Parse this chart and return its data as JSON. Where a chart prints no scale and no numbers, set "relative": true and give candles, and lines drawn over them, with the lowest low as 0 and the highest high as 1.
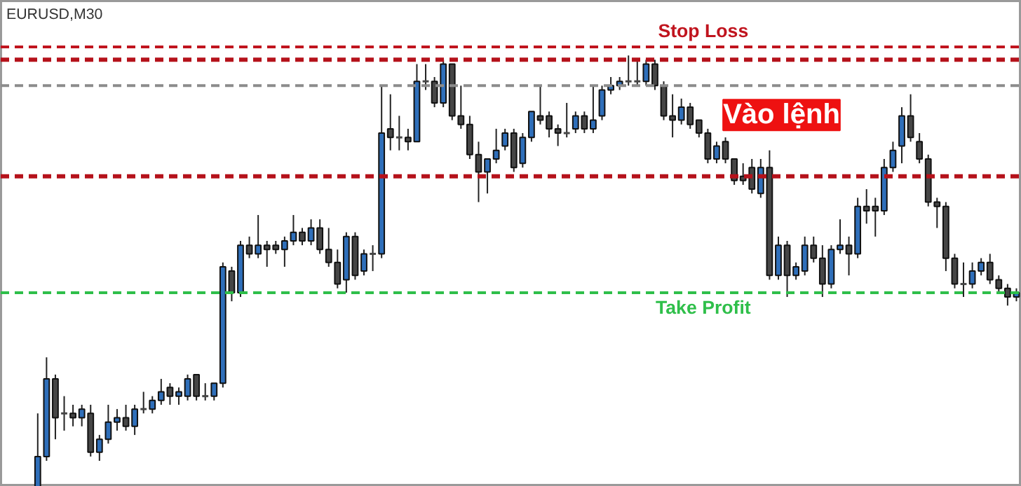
{
  "chart_data": {
    "type": "candlestick",
    "title": "EURUSD,M30",
    "relative": true,
    "categories": [
      null,
      null,
      null,
      null,
      null,
      null,
      null,
      null,
      null,
      null,
      null,
      null,
      null,
      null,
      null,
      null,
      null,
      null,
      null,
      null,
      null,
      null,
      null,
      null,
      null,
      null,
      null,
      null,
      null,
      null,
      null,
      null,
      null,
      null,
      null,
      null,
      null,
      null,
      null,
      null,
      null,
      null,
      null,
      null,
      null,
      null,
      null,
      null,
      null,
      null,
      null,
      null,
      null,
      null,
      null,
      null,
      null,
      null,
      null,
      null,
      null,
      null,
      null,
      null,
      null,
      null,
      null,
      null,
      null,
      null,
      null,
      null,
      null,
      null,
      null,
      null,
      null,
      null,
      null,
      null,
      null,
      null,
      null,
      null,
      null,
      null,
      null,
      null,
      null,
      null,
      null,
      null,
      null,
      null,
      null,
      null,
      null,
      null,
      null,
      null,
      null,
      null,
      null,
      null,
      null,
      null,
      null,
      null,
      null,
      null,
      null,
      null
    ],
    "ohlc": [
      [
        0,
        0.17,
        0,
        0.07
      ],
      [
        0.07,
        0.3,
        0.06,
        0.25
      ],
      [
        0.25,
        0.26,
        0.11,
        0.16
      ],
      [
        0.17,
        0.21,
        0.13,
        0.17
      ],
      [
        0.17,
        0.19,
        0.14,
        0.16
      ],
      [
        0.16,
        0.19,
        0.14,
        0.18
      ],
      [
        0.17,
        0.19,
        0.07,
        0.08
      ],
      [
        0.08,
        0.12,
        0.06,
        0.11
      ],
      [
        0.11,
        0.19,
        0.1,
        0.15
      ],
      [
        0.15,
        0.18,
        0.13,
        0.16
      ],
      [
        0.16,
        0.19,
        0.13,
        0.14
      ],
      [
        0.14,
        0.19,
        0.12,
        0.18
      ],
      [
        0.18,
        0.22,
        0.17,
        0.18
      ],
      [
        0.18,
        0.21,
        0.17,
        0.2
      ],
      [
        0.2,
        0.25,
        0.19,
        0.22
      ],
      [
        0.23,
        0.24,
        0.19,
        0.21
      ],
      [
        0.21,
        0.23,
        0.19,
        0.22
      ],
      [
        0.21,
        0.26,
        0.2,
        0.25
      ],
      [
        0.26,
        0.26,
        0.2,
        0.21
      ],
      [
        0.21,
        0.24,
        0.2,
        0.21
      ],
      [
        0.21,
        0.24,
        0.2,
        0.24
      ],
      [
        0.24,
        0.52,
        0.23,
        0.51
      ],
      [
        0.5,
        0.51,
        0.43,
        0.45
      ],
      [
        0.45,
        0.57,
        0.44,
        0.56
      ],
      [
        0.56,
        0.58,
        0.53,
        0.54
      ],
      [
        0.54,
        0.63,
        0.53,
        0.56
      ],
      [
        0.56,
        0.57,
        0.51,
        0.55
      ],
      [
        0.56,
        0.57,
        0.54,
        0.55
      ],
      [
        0.55,
        0.58,
        0.51,
        0.57
      ],
      [
        0.57,
        0.63,
        0.56,
        0.59
      ],
      [
        0.59,
        0.6,
        0.56,
        0.57
      ],
      [
        0.57,
        0.62,
        0.56,
        0.6
      ],
      [
        0.6,
        0.62,
        0.54,
        0.55
      ],
      [
        0.55,
        0.6,
        0.51,
        0.52
      ],
      [
        0.52,
        0.55,
        0.46,
        0.47
      ],
      [
        0.48,
        0.59,
        0.45,
        0.58
      ],
      [
        0.58,
        0.59,
        0.48,
        0.49
      ],
      [
        0.5,
        0.55,
        0.49,
        0.54
      ],
      [
        0.54,
        0.56,
        0.5,
        0.54
      ],
      [
        0.54,
        0.93,
        0.53,
        0.82
      ],
      [
        0.83,
        0.91,
        0.78,
        0.81
      ],
      [
        0.81,
        0.86,
        0.78,
        0.81
      ],
      [
        0.81,
        0.83,
        0.78,
        0.8
      ],
      [
        0.8,
        0.98,
        0.8,
        0.94
      ],
      [
        0.94,
        0.98,
        0.92,
        0.94
      ],
      [
        0.94,
        0.95,
        0.88,
        0.89
      ],
      [
        0.89,
        0.99,
        0.88,
        0.98
      ],
      [
        0.98,
        0.98,
        0.85,
        0.86
      ],
      [
        0.86,
        0.93,
        0.83,
        0.84
      ],
      [
        0.84,
        0.86,
        0.76,
        0.77
      ],
      [
        0.77,
        0.8,
        0.66,
        0.73
      ],
      [
        0.73,
        0.76,
        0.68,
        0.76
      ],
      [
        0.76,
        0.83,
        0.75,
        0.78
      ],
      [
        0.79,
        0.83,
        0.78,
        0.82
      ],
      [
        0.82,
        0.83,
        0.73,
        0.74
      ],
      [
        0.75,
        0.82,
        0.74,
        0.81
      ],
      [
        0.81,
        0.87,
        0.8,
        0.87
      ],
      [
        0.86,
        0.93,
        0.84,
        0.85
      ],
      [
        0.86,
        0.87,
        0.81,
        0.83
      ],
      [
        0.83,
        0.84,
        0.79,
        0.82
      ],
      [
        0.82,
        0.89,
        0.81,
        0.82
      ],
      [
        0.83,
        0.87,
        0.82,
        0.86
      ],
      [
        0.86,
        0.87,
        0.82,
        0.83
      ],
      [
        0.83,
        0.93,
        0.82,
        0.85
      ],
      [
        0.86,
        0.93,
        0.85,
        0.92
      ],
      [
        0.92,
        0.95,
        0.91,
        0.93
      ],
      [
        0.93,
        0.95,
        0.92,
        0.94
      ],
      [
        0.94,
        1,
        0.93,
        0.94
      ],
      [
        0.94,
        0.99,
        0.93,
        0.94
      ],
      [
        0.94,
        0.99,
        0.93,
        0.98
      ],
      [
        0.98,
        0.99,
        0.92,
        0.93
      ],
      [
        0.93,
        0.94,
        0.85,
        0.86
      ],
      [
        0.86,
        0.91,
        0.81,
        0.85
      ],
      [
        0.85,
        0.9,
        0.84,
        0.88
      ],
      [
        0.88,
        0.89,
        0.83,
        0.84
      ],
      [
        0.85,
        0.85,
        0.81,
        0.82
      ],
      [
        0.82,
        0.83,
        0.75,
        0.76
      ],
      [
        0.76,
        0.8,
        0.75,
        0.79
      ],
      [
        0.8,
        0.81,
        0.75,
        0.76
      ],
      [
        0.76,
        0.76,
        0.7,
        0.71
      ],
      [
        0.72,
        0.75,
        0.7,
        0.71
      ],
      [
        0.74,
        0.76,
        0.68,
        0.69
      ],
      [
        0.68,
        0.76,
        0.67,
        0.74
      ],
      [
        0.74,
        0.78,
        0.48,
        0.49
      ],
      [
        0.49,
        0.58,
        0.48,
        0.56
      ],
      [
        0.56,
        0.57,
        0.44,
        0.49
      ],
      [
        0.49,
        0.52,
        0.48,
        0.51
      ],
      [
        0.5,
        0.58,
        0.49,
        0.56
      ],
      [
        0.56,
        0.58,
        0.52,
        0.53
      ],
      [
        0.53,
        0.56,
        0.44,
        0.47
      ],
      [
        0.47,
        0.56,
        0.46,
        0.55
      ],
      [
        0.55,
        0.62,
        0.54,
        0.56
      ],
      [
        0.56,
        0.58,
        0.49,
        0.54
      ],
      [
        0.54,
        0.67,
        0.53,
        0.65
      ],
      [
        0.65,
        0.69,
        0.61,
        0.64
      ],
      [
        0.65,
        0.67,
        0.58,
        0.64
      ],
      [
        0.64,
        0.76,
        0.63,
        0.74
      ],
      [
        0.74,
        0.8,
        0.73,
        0.78
      ],
      [
        0.79,
        0.88,
        0.75,
        0.86
      ],
      [
        0.86,
        0.91,
        0.8,
        0.81
      ],
      [
        0.8,
        0.82,
        0.75,
        0.76
      ],
      [
        0.76,
        0.77,
        0.65,
        0.66
      ],
      [
        0.66,
        0.67,
        0.6,
        0.65
      ],
      [
        0.65,
        0.66,
        0.5,
        0.53
      ],
      [
        0.53,
        0.54,
        0.46,
        0.47
      ],
      [
        0.47,
        0.52,
        0.44,
        0.47
      ],
      [
        0.47,
        0.52,
        0.46,
        0.5
      ],
      [
        0.5,
        0.53,
        0.49,
        0.52
      ],
      [
        0.52,
        0.54,
        0.47,
        0.48
      ],
      [
        0.48,
        0.49,
        0.45,
        0.46
      ],
      [
        0.46,
        0.47,
        0.42,
        0.44
      ],
      [
        0.44,
        0.46,
        0.43,
        0.45
      ]
    ],
    "colors": [
      "#2f6fba",
      "#2f6fba",
      "#464646",
      "#464646",
      "#464646",
      "#2f6fba",
      "#464646",
      "#2f6fba",
      "#2f6fba",
      "#2f6fba",
      "#464646",
      "#2f6fba",
      "#464646",
      "#2f6fba",
      "#2f6fba",
      "#464646",
      "#2f6fba",
      "#2f6fba",
      "#464646",
      "#464646",
      "#2f6fba",
      "#2f6fba",
      "#464646",
      "#2f6fba",
      "#464646",
      "#2f6fba",
      "#464646",
      "#464646",
      "#2f6fba",
      "#2f6fba",
      "#464646",
      "#2f6fba",
      "#464646",
      "#464646",
      "#464646",
      "#2f6fba",
      "#464646",
      "#2f6fba",
      "#464646",
      "#2f6fba",
      "#464646",
      "#464646",
      "#464646",
      "#2f6fba",
      "#464646",
      "#464646",
      "#2f6fba",
      "#464646",
      "#464646",
      "#464646",
      "#464646",
      "#2f6fba",
      "#2f6fba",
      "#2f6fba",
      "#464646",
      "#2f6fba",
      "#2f6fba",
      "#464646",
      "#464646",
      "#464646",
      "#464646",
      "#2f6fba",
      "#464646",
      "#2f6fba",
      "#2f6fba",
      "#2f6fba",
      "#2f6fba",
      "#464646",
      "#464646",
      "#2f6fba",
      "#464646",
      "#464646",
      "#464646",
      "#2f6fba",
      "#464646",
      "#464646",
      "#464646",
      "#2f6fba",
      "#464646",
      "#464646",
      "#464646",
      "#464646",
      "#2f6fba",
      "#464646",
      "#2f6fba",
      "#464646",
      "#2f6fba",
      "#2f6fba",
      "#464646",
      "#464646",
      "#2f6fba",
      "#2f6fba",
      "#464646",
      "#2f6fba",
      "#464646",
      "#464646",
      "#2f6fba",
      "#2f6fba",
      "#2f6fba",
      "#464646",
      "#464646",
      "#464646",
      "#464646",
      "#464646",
      "#464646",
      "#464646",
      "#2f6fba",
      "#2f6fba",
      "#464646",
      "#464646",
      "#464646",
      "#2f6fba"
    ],
    "ref_lines": [
      {
        "axis": "y",
        "value": 0.99,
        "color": "#b5121b",
        "line_style": "dashed"
      },
      {
        "axis": "y",
        "value": 0.72,
        "color": "#b5121b",
        "line_style": "dashed"
      },
      {
        "axis": "y",
        "value": 1.02,
        "label": "Stop Loss",
        "color": "#c0141e",
        "line_style": "dashed"
      },
      {
        "axis": "y",
        "value": 0.93,
        "label": "Vào lệnh",
        "color": "#8c8c8c",
        "line_style": "dashed"
      },
      {
        "axis": "y",
        "value": 0.45,
        "label": "Take Profit",
        "color": "#2fbf4a",
        "line_style": "dashed"
      }
    ]
  }
}
